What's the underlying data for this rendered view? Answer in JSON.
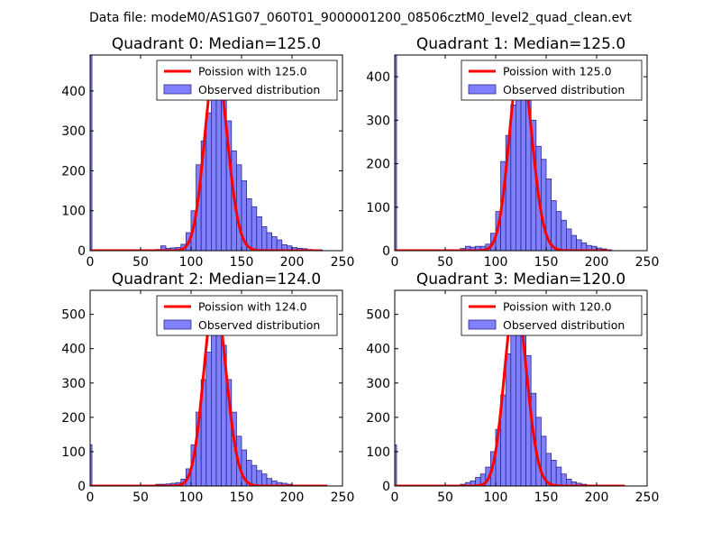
{
  "figure": {
    "suptitle": "Data file: modeM0/AS1G07_060T01_9000001200_08506cztM0_level2_quad_clean.evt"
  },
  "colors": {
    "bar_fill": "#8080ff",
    "bar_edge": "#2a2a8a",
    "poisson_line": "#ff0000"
  },
  "chart_data": [
    {
      "type": "bar",
      "panel": "quadrant-0",
      "title": "Quadrant 0: Median=125.0",
      "median": 125.0,
      "xlim": [
        0,
        250
      ],
      "ylim": [
        0,
        490
      ],
      "xticks": [
        0,
        50,
        100,
        150,
        200,
        250
      ],
      "yticks": [
        0,
        100,
        200,
        300,
        400
      ],
      "legend": [
        "Poission with 125.0",
        "Observed distribution"
      ],
      "legend_position": "top-right",
      "bin_width": 5,
      "zero_bar": {
        "x": 0,
        "value": 490
      },
      "bins": [
        [
          65,
          3
        ],
        [
          70,
          12
        ],
        [
          75,
          6
        ],
        [
          80,
          7
        ],
        [
          85,
          8
        ],
        [
          90,
          16
        ],
        [
          95,
          45
        ],
        [
          100,
          100
        ],
        [
          105,
          215
        ],
        [
          110,
          275
        ],
        [
          115,
          345
        ],
        [
          120,
          430
        ],
        [
          125,
          440
        ],
        [
          130,
          400
        ],
        [
          135,
          325
        ],
        [
          140,
          250
        ],
        [
          145,
          215
        ],
        [
          150,
          175
        ],
        [
          155,
          130
        ],
        [
          160,
          110
        ],
        [
          165,
          85
        ],
        [
          170,
          60
        ],
        [
          175,
          45
        ],
        [
          180,
          35
        ],
        [
          185,
          27
        ],
        [
          190,
          15
        ],
        [
          195,
          12
        ],
        [
          200,
          8
        ],
        [
          205,
          6
        ],
        [
          210,
          5
        ],
        [
          215,
          3
        ],
        [
          220,
          2
        ],
        [
          225,
          2
        ]
      ],
      "poisson": {
        "lambda": 125.0,
        "x_range": [
          0,
          228
        ],
        "peak": 470
      }
    },
    {
      "type": "bar",
      "panel": "quadrant-1",
      "title": "Quadrant 1: Median=125.0",
      "median": 125.0,
      "xlim": [
        0,
        250
      ],
      "ylim": [
        0,
        450
      ],
      "xticks": [
        0,
        50,
        100,
        150,
        200,
        250
      ],
      "yticks": [
        0,
        100,
        200,
        300,
        400
      ],
      "legend": [
        "Poission with 125.0",
        "Observed distribution"
      ],
      "legend_position": "top-right",
      "bin_width": 5,
      "zero_bar": {
        "x": 0,
        "value": 450
      },
      "bins": [
        [
          65,
          5
        ],
        [
          70,
          10
        ],
        [
          75,
          8
        ],
        [
          80,
          10
        ],
        [
          85,
          10
        ],
        [
          90,
          15
        ],
        [
          95,
          40
        ],
        [
          100,
          90
        ],
        [
          105,
          205
        ],
        [
          110,
          265
        ],
        [
          115,
          335
        ],
        [
          120,
          410
        ],
        [
          125,
          430
        ],
        [
          130,
          380
        ],
        [
          135,
          300
        ],
        [
          140,
          240
        ],
        [
          145,
          210
        ],
        [
          150,
          165
        ],
        [
          155,
          115
        ],
        [
          160,
          90
        ],
        [
          165,
          70
        ],
        [
          170,
          50
        ],
        [
          175,
          35
        ],
        [
          180,
          25
        ],
        [
          185,
          18
        ],
        [
          190,
          12
        ],
        [
          195,
          10
        ],
        [
          200,
          6
        ],
        [
          205,
          4
        ],
        [
          210,
          2
        ]
      ],
      "poisson": {
        "lambda": 125.0,
        "x_range": [
          0,
          212
        ],
        "peak": 435
      }
    },
    {
      "type": "bar",
      "panel": "quadrant-2",
      "title": "Quadrant 2: Median=124.0",
      "median": 124.0,
      "xlim": [
        0,
        250
      ],
      "ylim": [
        0,
        570
      ],
      "xticks": [
        0,
        50,
        100,
        150,
        200,
        250
      ],
      "yticks": [
        0,
        100,
        200,
        300,
        400,
        500
      ],
      "legend": [
        "Poission with 124.0",
        "Observed distribution"
      ],
      "legend_position": "top-right",
      "bin_width": 5,
      "zero_bar": {
        "x": 0,
        "value": 120
      },
      "bins": [
        [
          65,
          5
        ],
        [
          70,
          5
        ],
        [
          75,
          6
        ],
        [
          80,
          8
        ],
        [
          85,
          10
        ],
        [
          90,
          20
        ],
        [
          95,
          50
        ],
        [
          100,
          120
        ],
        [
          105,
          215
        ],
        [
          110,
          310
        ],
        [
          115,
          390
        ],
        [
          120,
          450
        ],
        [
          125,
          470
        ],
        [
          130,
          410
        ],
        [
          135,
          310
        ],
        [
          140,
          215
        ],
        [
          145,
          145
        ],
        [
          150,
          105
        ],
        [
          155,
          75
        ],
        [
          160,
          60
        ],
        [
          165,
          45
        ],
        [
          170,
          35
        ],
        [
          175,
          22
        ],
        [
          180,
          15
        ],
        [
          185,
          10
        ],
        [
          190,
          8
        ],
        [
          195,
          5
        ],
        [
          200,
          3
        ]
      ],
      "poisson": {
        "lambda": 124.0,
        "x_range": [
          0,
          235
        ],
        "peak": 545
      }
    },
    {
      "type": "bar",
      "panel": "quadrant-3",
      "title": "Quadrant 3: Median=120.0",
      "median": 120.0,
      "xlim": [
        0,
        250
      ],
      "ylim": [
        0,
        570
      ],
      "xticks": [
        0,
        50,
        100,
        150,
        200,
        250
      ],
      "yticks": [
        0,
        100,
        200,
        300,
        400,
        500
      ],
      "legend": [
        "Poission with 120.0",
        "Observed distribution"
      ],
      "legend_position": "top-right",
      "bin_width": 5,
      "zero_bar": {
        "x": 0,
        "value": 120
      },
      "bins": [
        [
          65,
          5
        ],
        [
          70,
          10
        ],
        [
          75,
          15
        ],
        [
          80,
          25
        ],
        [
          85,
          35
        ],
        [
          90,
          55
        ],
        [
          95,
          100
        ],
        [
          100,
          165
        ],
        [
          105,
          265
        ],
        [
          110,
          385
        ],
        [
          115,
          450
        ],
        [
          120,
          465
        ],
        [
          125,
          470
        ],
        [
          130,
          380
        ],
        [
          135,
          270
        ],
        [
          140,
          200
        ],
        [
          145,
          145
        ],
        [
          150,
          95
        ],
        [
          155,
          75
        ],
        [
          160,
          55
        ],
        [
          165,
          35
        ],
        [
          170,
          20
        ],
        [
          175,
          12
        ],
        [
          180,
          8
        ],
        [
          185,
          5
        ],
        [
          190,
          3
        ]
      ],
      "poisson": {
        "lambda": 120.0,
        "x_range": [
          0,
          228
        ],
        "peak": 545
      }
    }
  ]
}
